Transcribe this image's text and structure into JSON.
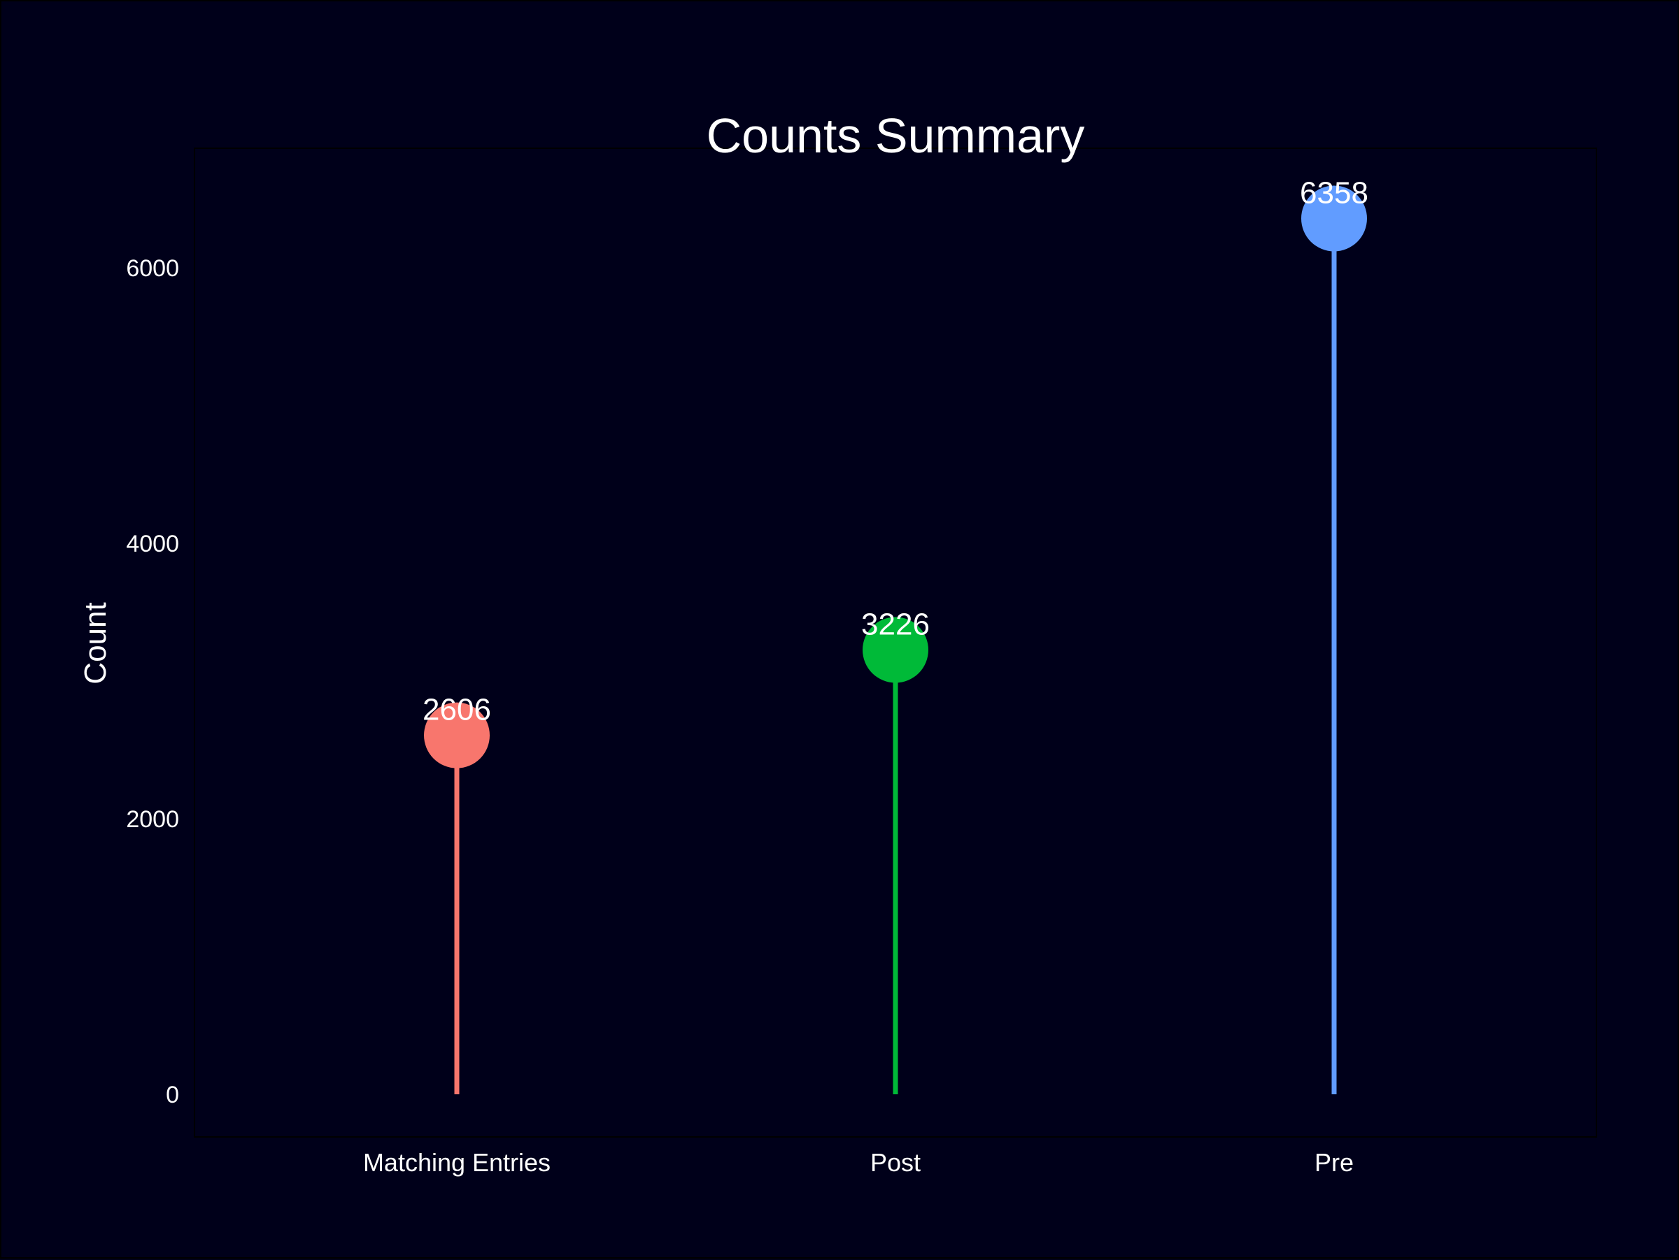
{
  "chart_data": {
    "type": "lollipop",
    "title": "Counts Summary",
    "xlabel": "",
    "ylabel": "Count",
    "categories": [
      "Matching Entries",
      "Post",
      "Pre"
    ],
    "values": [
      2606,
      3226,
      6358
    ],
    "value_labels": [
      "2606",
      "3226",
      "6358"
    ],
    "colors": [
      "#f8766d",
      "#00ba38",
      "#619cff"
    ],
    "yticks": [
      0,
      2000,
      4000,
      6000
    ],
    "ytick_labels": [
      "0",
      "2000",
      "4000",
      "6000"
    ],
    "ylim": [
      -300,
      6900
    ],
    "grid": false,
    "legend": "none"
  },
  "theme": {
    "background": "#00001a",
    "panel_border": "#000000",
    "text": "#ffffff"
  }
}
